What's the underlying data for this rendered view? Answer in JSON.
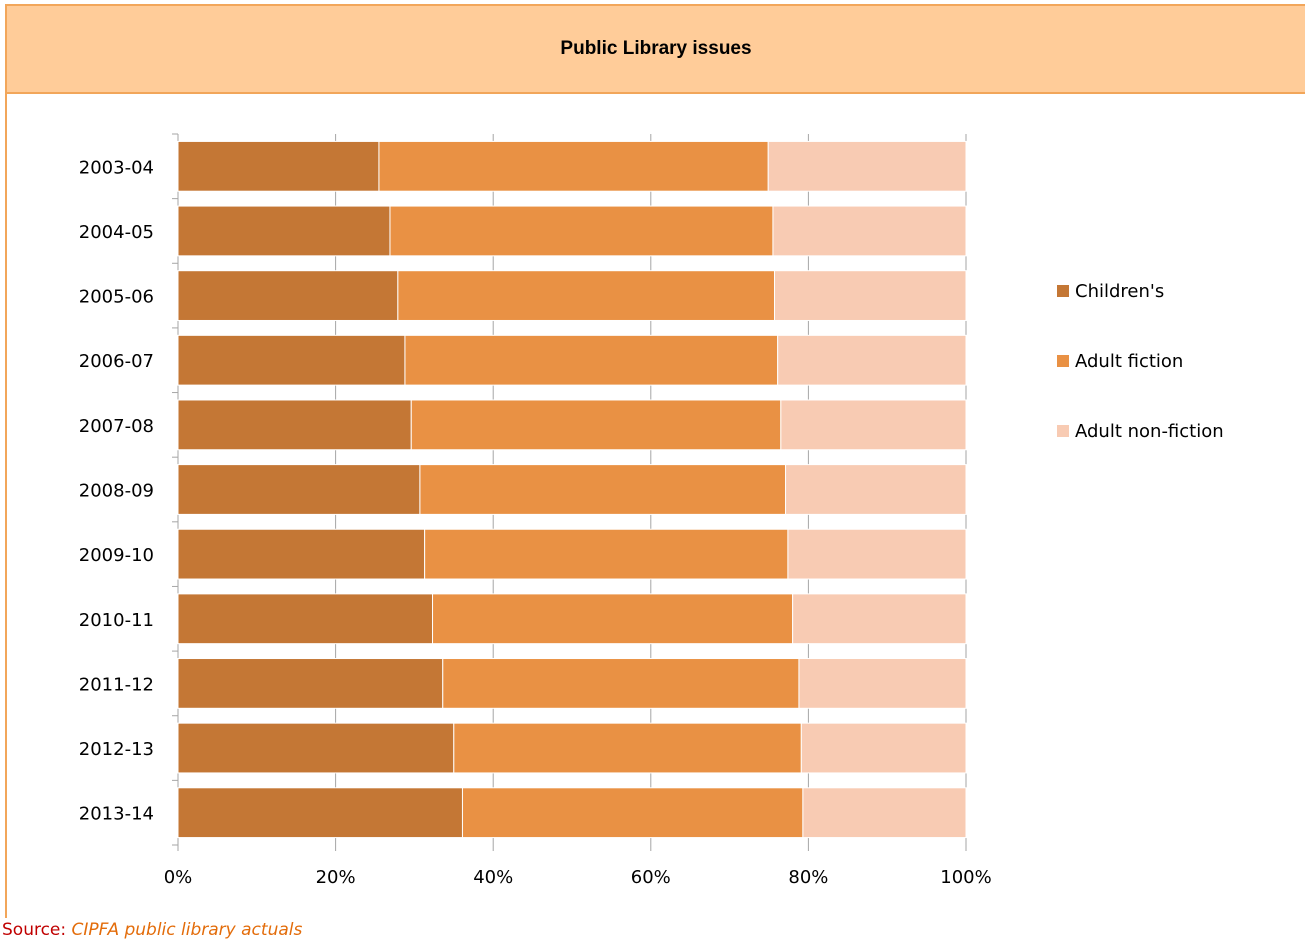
{
  "chart_data": {
    "type": "bar",
    "orientation": "horizontal",
    "stacked": "percent",
    "title": "Public Library issues",
    "categories": [
      "2003-04",
      "2004-05",
      "2005-06",
      "2006-07",
      "2007-08",
      "2008-09",
      "2009-10",
      "2010-11",
      "2011-12",
      "2012-13",
      "2013-14"
    ],
    "series": [
      {
        "name": "Children's",
        "color": "#c47735",
        "values": [
          25.5,
          26.9,
          27.9,
          28.8,
          29.6,
          30.7,
          31.3,
          32.3,
          33.6,
          35.0,
          36.1
        ]
      },
      {
        "name": "Adult fiction",
        "color": "#e99144",
        "values": [
          49.4,
          48.6,
          47.8,
          47.3,
          46.9,
          46.4,
          46.1,
          45.7,
          45.2,
          44.1,
          43.2
        ]
      },
      {
        "name": "Adult non-fiction",
        "color": "#f8cbb3",
        "values": [
          25.1,
          24.5,
          24.3,
          23.9,
          23.5,
          22.9,
          22.6,
          22.0,
          21.2,
          20.9,
          20.7
        ]
      }
    ],
    "xlim": [
      0,
      100
    ],
    "x_ticks": [
      "0%",
      "20%",
      "40%",
      "60%",
      "80%",
      "100%"
    ],
    "xlabel": "",
    "ylabel": "",
    "grid": "vertical",
    "legend": "right"
  },
  "source": {
    "label": "Source:",
    "value": "CIPFA public library actuals"
  }
}
